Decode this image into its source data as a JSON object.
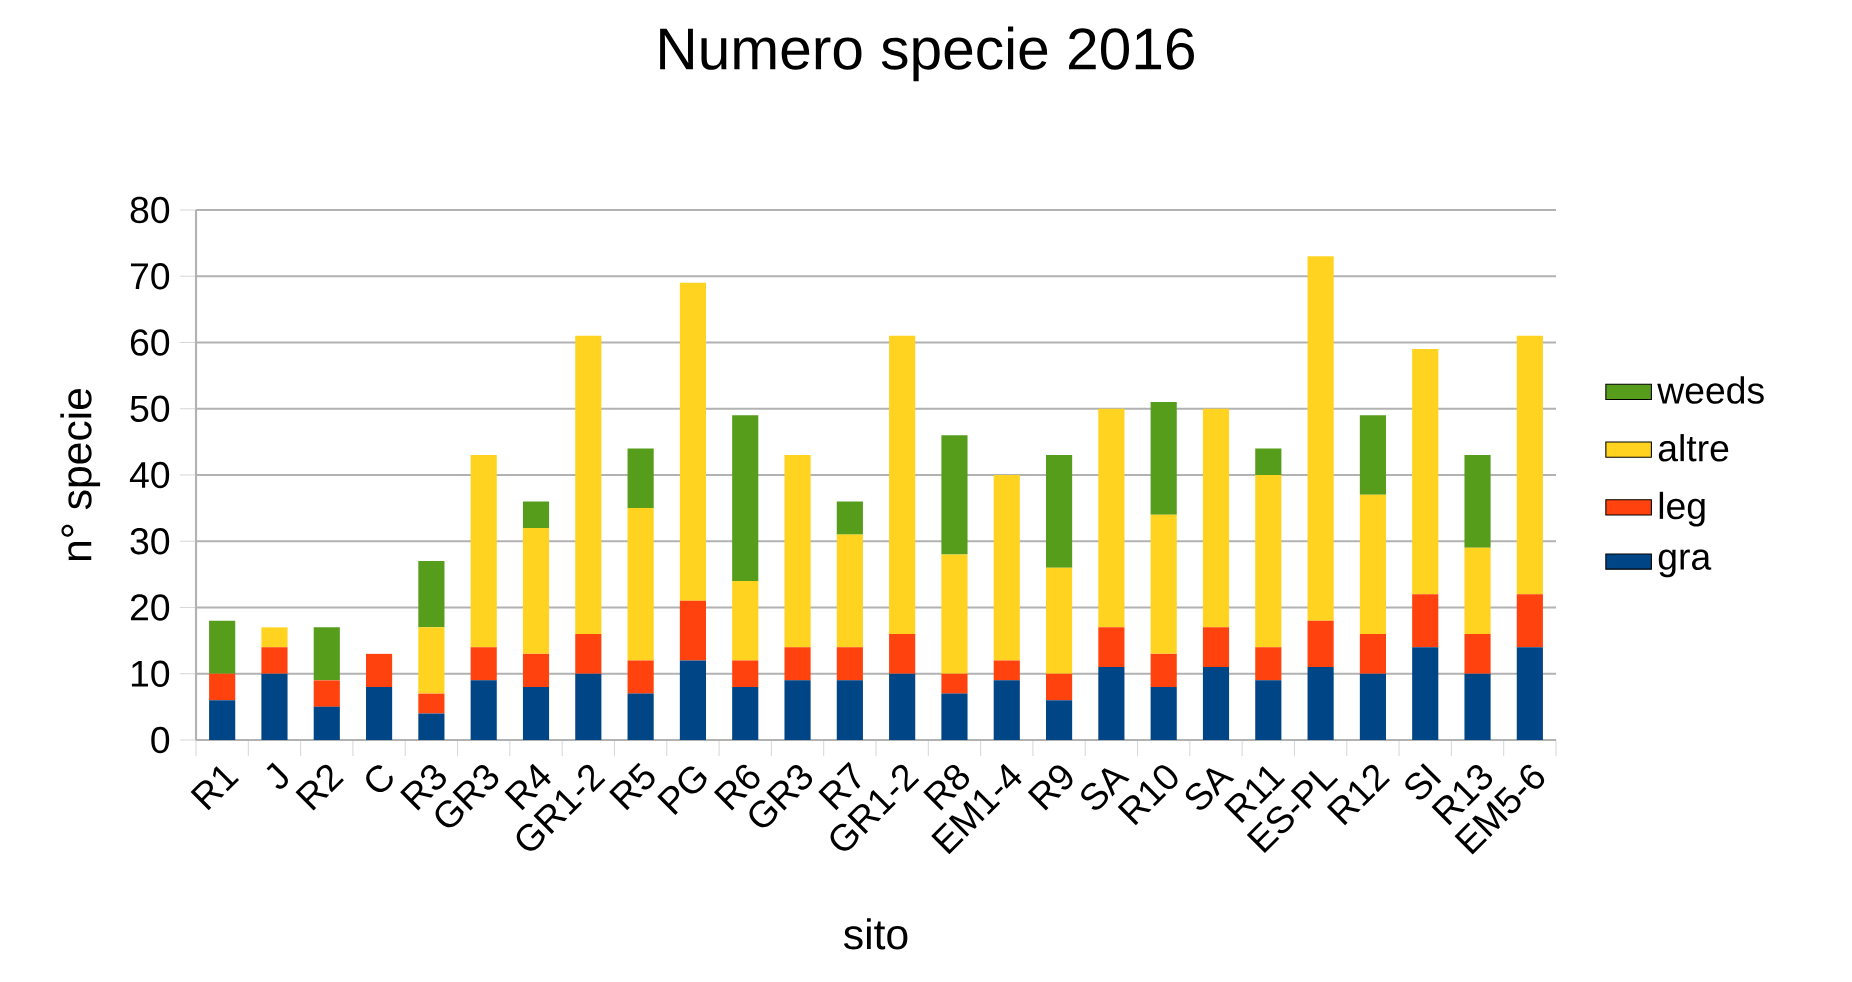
{
  "chart_data": {
    "type": "bar",
    "title": "Numero specie 2016",
    "xlabel": "sito",
    "ylabel": "n° specie",
    "categories": [
      "R1",
      "J",
      "R2",
      "C",
      "R3",
      "GR3",
      "R4",
      "GR1-2",
      "R5",
      "PG",
      "R6",
      "GR3",
      "R7",
      "GR1-2",
      "R8",
      "EM1-4",
      "R9",
      "SA",
      "R10",
      "SA",
      "R11",
      "ES-PL",
      "R12",
      "SI",
      "R13",
      "EM5-6"
    ],
    "series": [
      {
        "name": "gra",
        "color": "#004586",
        "values": [
          6,
          10,
          5,
          8,
          4,
          9,
          8,
          10,
          7,
          12,
          8,
          9,
          9,
          10,
          7,
          9,
          6,
          11,
          8,
          11,
          9,
          11,
          10,
          14,
          10,
          14
        ]
      },
      {
        "name": "leg",
        "color": "#ff420e",
        "values": [
          4,
          4,
          4,
          5,
          3,
          5,
          5,
          6,
          5,
          9,
          4,
          5,
          5,
          6,
          3,
          3,
          4,
          6,
          5,
          6,
          5,
          7,
          6,
          8,
          6,
          8
        ]
      },
      {
        "name": "altre",
        "color": "#ffd320",
        "values": [
          0,
          3,
          0,
          0,
          10,
          29,
          19,
          45,
          23,
          48,
          12,
          29,
          17,
          45,
          18,
          28,
          16,
          33,
          21,
          33,
          26,
          55,
          21,
          37,
          13,
          39
        ]
      },
      {
        "name": "weeds",
        "color": "#579d1c",
        "values": [
          8,
          0,
          8,
          0,
          10,
          0,
          4,
          0,
          9,
          0,
          25,
          0,
          5,
          0,
          18,
          0,
          17,
          0,
          17,
          0,
          4,
          0,
          12,
          0,
          14,
          0
        ]
      }
    ],
    "stacked": true,
    "ylim": [
      0,
      80
    ],
    "yticks": [
      0,
      10,
      20,
      30,
      40,
      50,
      60,
      70,
      80
    ],
    "grid": "y",
    "legend": "right"
  }
}
